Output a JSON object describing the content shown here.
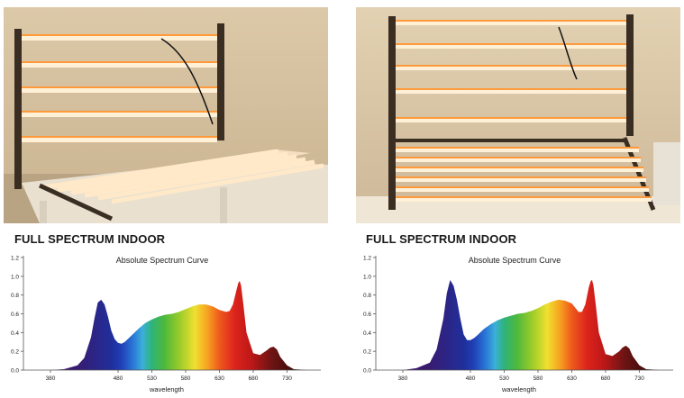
{
  "panels": [
    {
      "photo": {
        "icon": "led-grow-light-bars-photo"
      },
      "heading": "FULL SPECTRUM INDOOR",
      "chart_data": {
        "type": "area",
        "title": "Absolute Spectrum Curve",
        "xlabel": "wavelength",
        "ylabel": "",
        "xlim": [
          340,
          780
        ],
        "ylim": [
          0,
          1.2
        ],
        "x_ticks": [
          "380",
          "480",
          "530",
          "580",
          "630",
          "680",
          "730"
        ],
        "y_ticks": [
          "0.0",
          "0.2",
          "0.4",
          "0.6",
          "0.8",
          "1.0",
          "1.2"
        ],
        "grid": false,
        "x": [
          380,
          400,
          420,
          430,
          440,
          445,
          450,
          455,
          460,
          465,
          470,
          475,
          480,
          485,
          490,
          500,
          510,
          520,
          530,
          540,
          550,
          560,
          570,
          580,
          590,
          600,
          610,
          620,
          630,
          640,
          645,
          650,
          655,
          658,
          660,
          662,
          665,
          670,
          680,
          690,
          700,
          705,
          710,
          715,
          720,
          730,
          740,
          760,
          780
        ],
        "y": [
          0.0,
          0.01,
          0.05,
          0.13,
          0.35,
          0.55,
          0.72,
          0.75,
          0.7,
          0.57,
          0.42,
          0.33,
          0.29,
          0.28,
          0.3,
          0.37,
          0.44,
          0.5,
          0.54,
          0.57,
          0.59,
          0.6,
          0.62,
          0.65,
          0.68,
          0.7,
          0.7,
          0.68,
          0.64,
          0.62,
          0.63,
          0.7,
          0.85,
          0.93,
          0.95,
          0.9,
          0.72,
          0.4,
          0.18,
          0.16,
          0.21,
          0.24,
          0.25,
          0.22,
          0.14,
          0.05,
          0.01,
          0.0,
          0.0
        ]
      }
    },
    {
      "photo": {
        "icon": "led-grow-light-bars-photo"
      },
      "heading": "FULL SPECTRUM INDOOR",
      "chart_data": {
        "type": "area",
        "title": "Absolute Spectrum Curve",
        "xlabel": "wavelength",
        "ylabel": "",
        "xlim": [
          340,
          780
        ],
        "ylim": [
          0,
          1.2
        ],
        "x_ticks": [
          "380",
          "480",
          "530",
          "580",
          "630",
          "680",
          "730"
        ],
        "y_ticks": [
          "0.0",
          "0.2",
          "0.4",
          "0.6",
          "0.8",
          "1.0",
          "1.2"
        ],
        "grid": false,
        "x": [
          380,
          400,
          420,
          430,
          440,
          445,
          450,
          455,
          460,
          465,
          470,
          475,
          480,
          485,
          490,
          500,
          510,
          520,
          530,
          540,
          550,
          560,
          570,
          580,
          590,
          600,
          610,
          620,
          630,
          640,
          645,
          650,
          655,
          658,
          660,
          662,
          665,
          670,
          680,
          690,
          700,
          705,
          710,
          715,
          720,
          730,
          740,
          760,
          780
        ],
        "y": [
          0.0,
          0.02,
          0.08,
          0.22,
          0.55,
          0.82,
          0.96,
          0.9,
          0.75,
          0.55,
          0.38,
          0.32,
          0.32,
          0.34,
          0.37,
          0.44,
          0.49,
          0.53,
          0.56,
          0.58,
          0.6,
          0.61,
          0.63,
          0.66,
          0.7,
          0.73,
          0.75,
          0.74,
          0.71,
          0.62,
          0.62,
          0.7,
          0.88,
          0.95,
          0.96,
          0.9,
          0.72,
          0.4,
          0.17,
          0.15,
          0.2,
          0.24,
          0.26,
          0.23,
          0.15,
          0.05,
          0.01,
          0.0,
          0.0
        ]
      }
    }
  ]
}
